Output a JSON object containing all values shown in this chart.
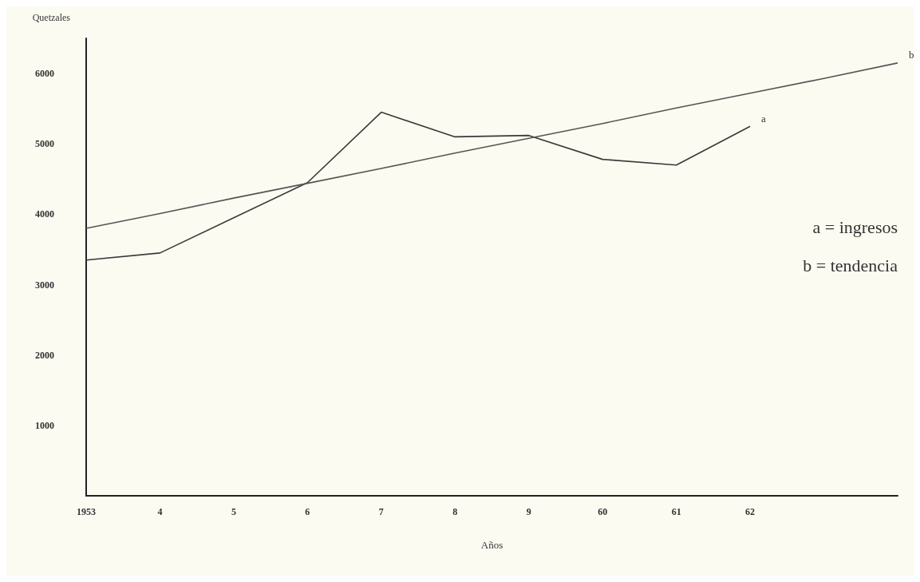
{
  "chart_data": {
    "type": "line",
    "xlabel": "Años",
    "ylabel": "Quetzales",
    "categories": [
      "1953",
      "4",
      "5",
      "6",
      "7",
      "8",
      "9",
      "60",
      "61",
      "62",
      null,
      null
    ],
    "series": [
      {
        "name": "a",
        "color": "#3a3a3a",
        "values": [
          3350,
          3450,
          3950,
          4450,
          5450,
          5100,
          5120,
          4780,
          4700,
          5250,
          null,
          null
        ]
      },
      {
        "name": "b",
        "color": "#555555",
        "values": [
          3800,
          4010,
          4230,
          4440,
          4650,
          4870,
          5080,
          5290,
          5510,
          5720,
          5930,
          6150
        ]
      }
    ],
    "annotations": [
      "a = ingresos",
      "b = tendencia"
    ],
    "ylim": [
      0,
      6500
    ],
    "yticks": [
      1000,
      2000,
      3000,
      4000,
      5000,
      6000
    ],
    "grid": false,
    "legend": false,
    "marker": "none",
    "line_style": "solid"
  }
}
